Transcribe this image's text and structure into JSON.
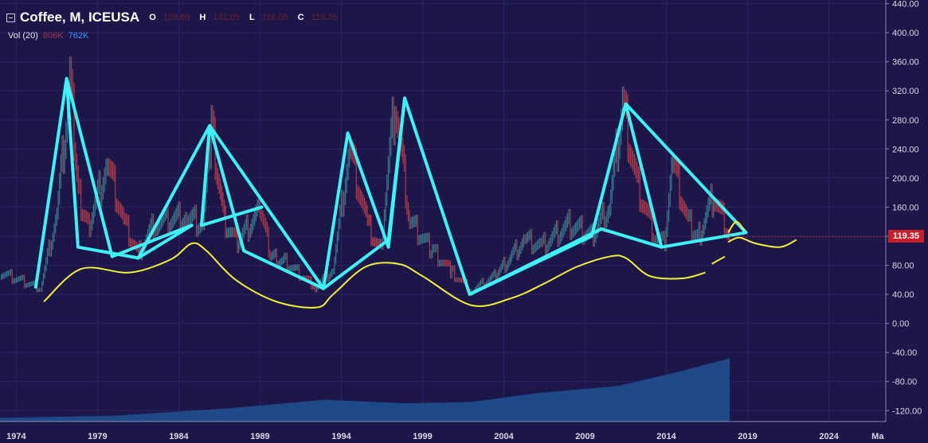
{
  "header": {
    "symbol": "Coffee, M, ICEUSA",
    "o_label": "O",
    "o_value": "129.80",
    "h_label": "H",
    "h_value": "131.05",
    "l_label": "L",
    "l_value": "116.05",
    "c_label": "C",
    "c_value": "119.35",
    "vol_label": "Vol (20)",
    "vol_value1": "806K",
    "vol_value2": "762K"
  },
  "last_price": "119.35",
  "colors": {
    "background": "#1d1648",
    "grid": "#2a2466",
    "axis_text": "#d8d8e8",
    "candle_up": "#3a7a8c",
    "candle_down": "#b03a4a",
    "volume": "#1f5a9e",
    "pattern_lines": "#3ff0f5",
    "cycle_curve": "#f2f03a",
    "last_price_tag": "#c81f2a"
  },
  "chart_data": {
    "type": "line",
    "title": "Coffee, M, ICEUSA",
    "interval": "monthly",
    "x_ticks": [
      "1974",
      "1979",
      "1984",
      "1989",
      "1994",
      "1999",
      "2004",
      "2009",
      "2014",
      "2019",
      "2024",
      "Ma"
    ],
    "y_ticks": [
      "440.00",
      "400.00",
      "360.00",
      "320.00",
      "280.00",
      "240.00",
      "200.00",
      "160.00",
      "120.00",
      "80.00",
      "40.00",
      "0.00",
      "-40.00",
      "-80.00",
      "-120.00"
    ],
    "ylim": [
      -135,
      445
    ],
    "xlim": [
      1973.0,
      2027.5
    ],
    "grid": true,
    "last_price": 119.35,
    "price_series": [
      {
        "x": 1973.0,
        "y": 70
      },
      {
        "x": 1975.5,
        "y": 48
      },
      {
        "x": 1976.5,
        "y": 150
      },
      {
        "x": 1977.3,
        "y": 330
      },
      {
        "x": 1977.9,
        "y": 170
      },
      {
        "x": 1978.5,
        "y": 135
      },
      {
        "x": 1979.6,
        "y": 220
      },
      {
        "x": 1980.6,
        "y": 140
      },
      {
        "x": 1981.5,
        "y": 95
      },
      {
        "x": 1982.6,
        "y": 140
      },
      {
        "x": 1984.5,
        "y": 145
      },
      {
        "x": 1985.5,
        "y": 135
      },
      {
        "x": 1986.0,
        "y": 270
      },
      {
        "x": 1986.8,
        "y": 140
      },
      {
        "x": 1987.6,
        "y": 110
      },
      {
        "x": 1989.0,
        "y": 155
      },
      {
        "x": 1989.7,
        "y": 90
      },
      {
        "x": 1990.5,
        "y": 85
      },
      {
        "x": 1992.4,
        "y": 50
      },
      {
        "x": 1993.5,
        "y": 75
      },
      {
        "x": 1994.5,
        "y": 240
      },
      {
        "x": 1995.6,
        "y": 135
      },
      {
        "x": 1996.4,
        "y": 100
      },
      {
        "x": 1997.3,
        "y": 305
      },
      {
        "x": 1998.2,
        "y": 140
      },
      {
        "x": 1999.6,
        "y": 100
      },
      {
        "x": 2000.8,
        "y": 70
      },
      {
        "x": 2002.0,
        "y": 45
      },
      {
        "x": 2003.5,
        "y": 65
      },
      {
        "x": 2005.3,
        "y": 115
      },
      {
        "x": 2006.3,
        "y": 105
      },
      {
        "x": 2008.0,
        "y": 135
      },
      {
        "x": 2009.5,
        "y": 120
      },
      {
        "x": 2010.5,
        "y": 160
      },
      {
        "x": 2011.3,
        "y": 300
      },
      {
        "x": 2012.2,
        "y": 190
      },
      {
        "x": 2013.2,
        "y": 125
      },
      {
        "x": 2013.9,
        "y": 110
      },
      {
        "x": 2014.4,
        "y": 220
      },
      {
        "x": 2015.3,
        "y": 140
      },
      {
        "x": 2016.0,
        "y": 120
      },
      {
        "x": 2016.9,
        "y": 175
      },
      {
        "x": 2017.9,
        "y": 119.35
      }
    ],
    "volume_series": [
      {
        "x": 1973.0,
        "y": -130
      },
      {
        "x": 1980.0,
        "y": -127
      },
      {
        "x": 1987.0,
        "y": -117
      },
      {
        "x": 1993.0,
        "y": -105
      },
      {
        "x": 1998.0,
        "y": -110
      },
      {
        "x": 2002.0,
        "y": -108
      },
      {
        "x": 2006.0,
        "y": -96
      },
      {
        "x": 2011.0,
        "y": -86
      },
      {
        "x": 2014.5,
        "y": -68
      },
      {
        "x": 2017.9,
        "y": -48
      }
    ],
    "pattern_lines": [
      [
        [
          1975.2,
          50
        ],
        [
          1977.1,
          337
        ],
        [
          1977.8,
          105
        ],
        [
          1981.5,
          90
        ],
        [
          1984.8,
          135
        ],
        [
          1979.9,
          92
        ],
        [
          1977.1,
          337
        ]
      ],
      [
        [
          1981.5,
          90
        ],
        [
          1985.9,
          272
        ],
        [
          1985.4,
          135
        ],
        [
          1989.1,
          160
        ]
      ],
      [
        [
          1985.9,
          272
        ],
        [
          1988.0,
          100
        ],
        [
          1992.9,
          48
        ],
        [
          1994.4,
          262
        ],
        [
          1996.9,
          105
        ],
        [
          1997.9,
          310
        ],
        [
          2001.9,
          40
        ],
        [
          2010.0,
          130
        ],
        [
          2013.7,
          105
        ],
        [
          2018.9,
          125
        ],
        [
          2011.5,
          302
        ],
        [
          2009.4,
          120
        ],
        [
          2001.9,
          40
        ]
      ],
      [
        [
          1985.9,
          272
        ],
        [
          1992.9,
          48
        ],
        [
          1996.9,
          115
        ],
        [
          1997.9,
          310
        ]
      ],
      [
        [
          2011.5,
          302
        ],
        [
          2013.7,
          105
        ]
      ]
    ],
    "cycle_curve": [
      [
        1975.7,
        30
      ],
      [
        1978.0,
        75
      ],
      [
        1981.0,
        70
      ],
      [
        1983.5,
        88
      ],
      [
        1984.8,
        110
      ],
      [
        1985.7,
        100
      ],
      [
        1987.5,
        60
      ],
      [
        1990.0,
        30
      ],
      [
        1992.5,
        22
      ],
      [
        1993.5,
        40
      ],
      [
        1995.5,
        78
      ],
      [
        1997.5,
        82
      ],
      [
        1999.0,
        65
      ],
      [
        2002.0,
        25
      ],
      [
        2004.5,
        35
      ],
      [
        2006.5,
        55
      ],
      [
        2008.5,
        78
      ],
      [
        2010.5,
        92
      ],
      [
        2011.5,
        90
      ],
      [
        2013.0,
        65
      ],
      [
        2015.0,
        62
      ],
      [
        2016.4,
        70
      ]
    ],
    "cycle_curve_segments": [
      [
        [
          2016.8,
          82
        ],
        [
          2017.6,
          92
        ]
      ],
      [
        [
          2017.8,
          112
        ],
        [
          2018.5,
          118
        ],
        [
          2019.5,
          110
        ],
        [
          2021.0,
          105
        ],
        [
          2022.0,
          115
        ]
      ],
      [
        [
          2017.8,
          125
        ],
        [
          2018.3,
          140
        ],
        [
          2018.8,
          128
        ]
      ]
    ]
  }
}
